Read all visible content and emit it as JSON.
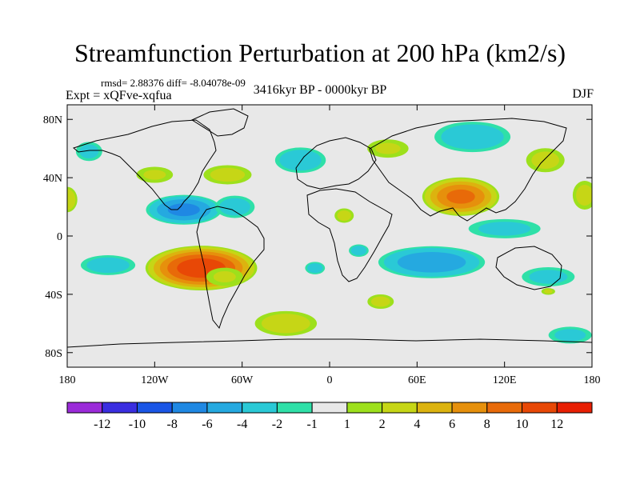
{
  "chart_data": {
    "type": "heatmap",
    "title": "Streamfunction Perturbation at 200 hPa (km2/s)",
    "stats": "rmsd= 2.88376 diff= -8.04078e-09",
    "subtitle": "3416kyr BP - 0000kyr BP",
    "left_label": "Expt = xQFve-xqfua",
    "right_label": "DJF",
    "x_range": [
      -180,
      180
    ],
    "y_range": [
      -90,
      90
    ],
    "x_ticks": [
      {
        "value": -180,
        "label": "180"
      },
      {
        "value": -120,
        "label": "120W"
      },
      {
        "value": -60,
        "label": "60W"
      },
      {
        "value": 0,
        "label": "0"
      },
      {
        "value": 60,
        "label": "60E"
      },
      {
        "value": 120,
        "label": "120E"
      },
      {
        "value": 180,
        "label": "180"
      }
    ],
    "y_ticks": [
      {
        "value": 80,
        "label": "80N"
      },
      {
        "value": 40,
        "label": "40N"
      },
      {
        "value": 0,
        "label": "0"
      },
      {
        "value": -40,
        "label": "40S"
      },
      {
        "value": -80,
        "label": "80S"
      }
    ],
    "colorbar": {
      "labels": [
        "-12",
        "-10",
        "-8",
        "-6",
        "-4",
        "-2",
        "-1",
        "1",
        "2",
        "4",
        "6",
        "8",
        "10",
        "12"
      ],
      "colors": [
        "#9b2bd9",
        "#3a2ee0",
        "#1a56e6",
        "#1f88e3",
        "#25a9e0",
        "#2ac9d6",
        "#2fe0a8",
        "#e8e8e8",
        "#9de01c",
        "#c6d616",
        "#dcb30f",
        "#e6900c",
        "#e86a09",
        "#e84806",
        "#e81f03"
      ]
    },
    "anomalies": [
      {
        "lon": -88,
        "lat": -22,
        "rx": 40,
        "ry": 16,
        "value": 11.5
      },
      {
        "lon": -72,
        "lat": -28,
        "rx": 16,
        "ry": 8,
        "value": 2
      },
      {
        "lon": -100,
        "lat": 18,
        "rx": 28,
        "ry": 11,
        "value": -6.5
      },
      {
        "lon": -65,
        "lat": 20,
        "rx": 16,
        "ry": 9,
        "value": -3
      },
      {
        "lon": -152,
        "lat": -20,
        "rx": 22,
        "ry": 8,
        "value": -3
      },
      {
        "lon": -165,
        "lat": 58,
        "rx": 11,
        "ry": 8,
        "value": -2.5
      },
      {
        "lon": -120,
        "lat": 42,
        "rx": 16,
        "ry": 7,
        "value": 2
      },
      {
        "lon": -70,
        "lat": 42,
        "rx": 20,
        "ry": 8,
        "value": 2.5
      },
      {
        "lon": -180,
        "lat": 25,
        "rx": 8,
        "ry": 10,
        "value": 3.5
      },
      {
        "lon": -20,
        "lat": 52,
        "rx": 20,
        "ry": 10,
        "value": -3.5
      },
      {
        "lon": 10,
        "lat": 14,
        "rx": 8,
        "ry": 6,
        "value": 2.5
      },
      {
        "lon": 20,
        "lat": -10,
        "rx": 8,
        "ry": 5,
        "value": -3
      },
      {
        "lon": -10,
        "lat": -22,
        "rx": 8,
        "ry": 5,
        "value": -3
      },
      {
        "lon": 35,
        "lat": -45,
        "rx": 11,
        "ry": 6,
        "value": 2.5
      },
      {
        "lon": 40,
        "lat": 60,
        "rx": 18,
        "ry": 8,
        "value": 2
      },
      {
        "lon": 90,
        "lat": 27,
        "rx": 28,
        "ry": 14,
        "value": 8.5
      },
      {
        "lon": 98,
        "lat": 68,
        "rx": 30,
        "ry": 12,
        "value": -3.5
      },
      {
        "lon": 148,
        "lat": 52,
        "rx": 16,
        "ry": 10,
        "value": 2.5
      },
      {
        "lon": 175,
        "lat": 28,
        "rx": 10,
        "ry": 12,
        "value": 2.5
      },
      {
        "lon": 70,
        "lat": -18,
        "rx": 40,
        "ry": 12,
        "value": -5.5
      },
      {
        "lon": 120,
        "lat": 5,
        "rx": 30,
        "ry": 8,
        "value": -2.5
      },
      {
        "lon": 150,
        "lat": -28,
        "rx": 22,
        "ry": 8,
        "value": -2.5
      },
      {
        "lon": 150,
        "lat": -38,
        "rx": 6,
        "ry": 3,
        "value": 2
      },
      {
        "lon": 165,
        "lat": -68,
        "rx": 18,
        "ry": 7,
        "value": -2.5
      },
      {
        "lon": -30,
        "lat": -60,
        "rx": 25,
        "ry": 10,
        "value": 3
      }
    ]
  }
}
